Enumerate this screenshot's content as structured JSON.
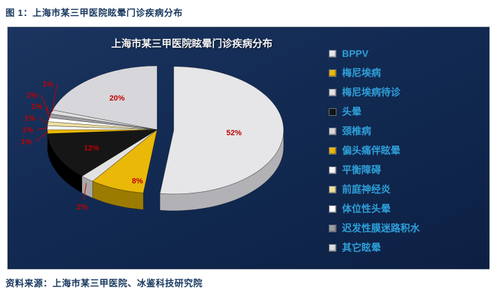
{
  "page": {
    "figure_caption": "图 1：上海市某三甲医院眩晕门诊疾病分布",
    "source_note": "资料来源：上海市某三甲医院、冰鉴科技研究院"
  },
  "chart_data": {
    "type": "pie",
    "title": "上海市某三甲医院眩晕门诊疾病分布",
    "unit": "%",
    "style": "3d-exploded",
    "legend_position": "right",
    "background": "#122a52",
    "label_color": "#c00000",
    "legend_text_color": "#2e9fd9",
    "slices": [
      {
        "label": "BPPV",
        "value": 52,
        "pct_label": "52%",
        "color": "#e6e6e8",
        "wall": "#b2b2b6",
        "exploded": true
      },
      {
        "label": "梅尼埃病",
        "value": 8,
        "pct_label": "8%",
        "color": "#e9b808",
        "wall": "#9c7c00"
      },
      {
        "label": "梅尼埃病待诊",
        "value": 2,
        "pct_label": "2%",
        "color": "#e2e2e2",
        "wall": "#a8a8a8"
      },
      {
        "label": "头晕",
        "value": 12,
        "pct_label": "12%",
        "color": "#161616",
        "wall": "#000000"
      },
      {
        "label": "偏头痛伴眩晕",
        "value": 1,
        "pct_label": "1%",
        "color": "#e9b808",
        "wall": "#9c7c00"
      },
      {
        "label": "平衡障碍",
        "value": 1,
        "pct_label": "1%",
        "color": "#f4f4f4",
        "wall": "#bcbcbc"
      },
      {
        "label": "前庭神经炎",
        "value": 1,
        "pct_label": "1%",
        "color": "#efe0a0",
        "wall": "#b5a468"
      },
      {
        "label": "体位性头晕",
        "value": 1,
        "pct_label": "1%",
        "color": "#ffffff",
        "wall": "#c4c4c4"
      },
      {
        "label": "迟发性膜迷路积水",
        "value": 1,
        "pct_label": "1%",
        "color": "#9d9da1",
        "wall": "#6e6e72"
      },
      {
        "label": "其它眩晕",
        "value": 1,
        "pct_label": "1%",
        "color": "#dddddd",
        "wall": "#a5a5a5"
      },
      {
        "label": "颈椎病",
        "value": 20,
        "pct_label": "20%",
        "color": "#d7d7db",
        "wall": "#a0a0a5"
      }
    ],
    "legend_order": [
      "BPPV",
      "梅尼埃病",
      "梅尼埃病待诊",
      "头晕",
      "颈椎病",
      "偏头痛伴眩晕",
      "平衡障碍",
      "前庭神经炎",
      "体位性头晕",
      "迟发性膜迷路积水",
      "其它眩晕"
    ]
  }
}
